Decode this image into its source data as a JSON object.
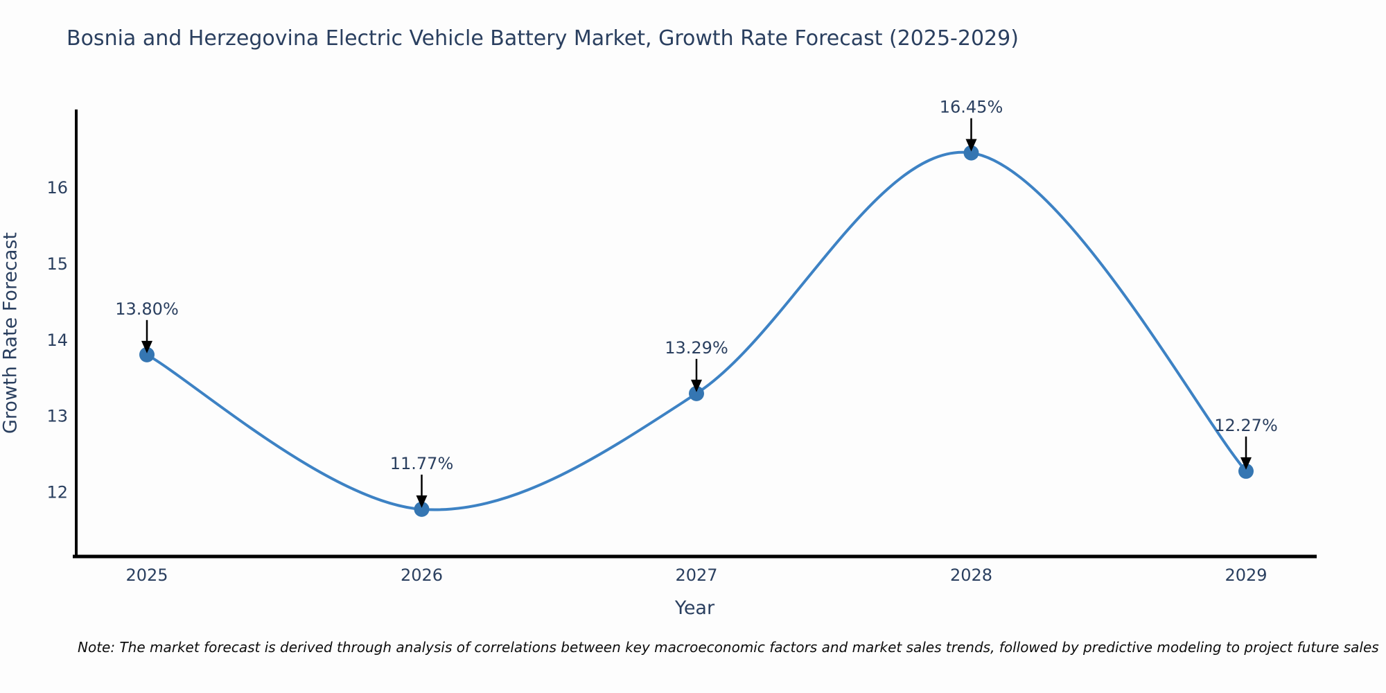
{
  "title": "Bosnia and Herzegovina Electric Vehicle Battery Market, Growth Rate Forecast (2025-2029)",
  "note": "Note: The market forecast is derived through analysis of correlations between key macroeconomic factors and market sales trends, followed by predictive modeling to project future sales",
  "chart_data": {
    "type": "line",
    "title": "Bosnia and Herzegovina Electric Vehicle Battery Market, Growth Rate Forecast (2025-2029)",
    "xlabel": "Year",
    "ylabel": "Growth Rate Forecast",
    "categories": [
      "2025",
      "2026",
      "2027",
      "2028",
      "2029"
    ],
    "series": [
      {
        "name": "Growth Rate Forecast",
        "values": [
          13.8,
          11.77,
          13.29,
          16.45,
          12.27
        ],
        "point_labels": [
          "13.80%",
          "11.77%",
          "13.29%",
          "16.45%",
          "12.27%"
        ]
      }
    ],
    "yticks": [
      12,
      13,
      14,
      15,
      16
    ],
    "ylim": [
      11.15,
      17.02
    ],
    "grid": false,
    "legend": "none",
    "line_shape": "spline",
    "annotation_arrows": true,
    "colors": {
      "line": "#3d82c4",
      "marker": "#3576b2",
      "text": "#2a3f5f",
      "axis_line": "#000000",
      "arrow": "#000000",
      "background": "#fdfdfd"
    }
  }
}
